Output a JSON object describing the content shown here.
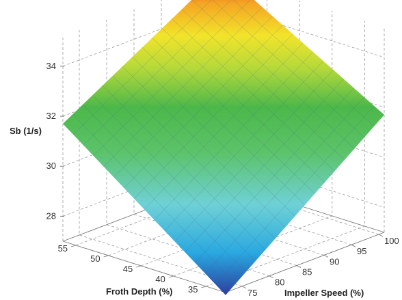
{
  "chart_data": {
    "type": "surface",
    "zlabel": "Sb (1/s)",
    "xlabel": "Froth Depth (%)",
    "ylabel": "Impeller Speed (%)",
    "z_ticks": [
      {
        "label": "28",
        "value": 28
      },
      {
        "label": "30",
        "value": 30
      },
      {
        "label": "32",
        "value": 32
      },
      {
        "label": "34",
        "value": 34
      }
    ],
    "x_ticks": [
      {
        "label": "35",
        "value": 35
      },
      {
        "label": "40",
        "value": 40
      },
      {
        "label": "45",
        "value": 45
      },
      {
        "label": "50",
        "value": 50
      },
      {
        "label": "55",
        "value": 55
      }
    ],
    "y_ticks": [
      {
        "label": "75",
        "value": 75
      },
      {
        "label": "80",
        "value": 80
      },
      {
        "label": "85",
        "value": 85
      },
      {
        "label": "90",
        "value": 90
      },
      {
        "label": "95",
        "value": 95
      },
      {
        "label": "100",
        "value": 100
      }
    ],
    "xlim": [
      32,
      57
    ],
    "ylim": [
      72,
      101
    ],
    "zlim": [
      27,
      35.2
    ],
    "surface_corners": [
      {
        "froth_depth": 32,
        "impeller_speed": 72,
        "sb": 26.9
      },
      {
        "froth_depth": 57,
        "impeller_speed": 72,
        "sb": 31.7
      },
      {
        "froth_depth": 32,
        "impeller_speed": 101,
        "sb": 31.7
      },
      {
        "froth_depth": 57,
        "impeller_speed": 101,
        "sb": 35.4
      }
    ],
    "colormap": [
      "#2b3f9e",
      "#2aa8e0",
      "#6fd1d6",
      "#5cc36a",
      "#4cb84a",
      "#b5d93a",
      "#f2e42a",
      "#f5a623",
      "#e82418"
    ],
    "grid": true
  }
}
